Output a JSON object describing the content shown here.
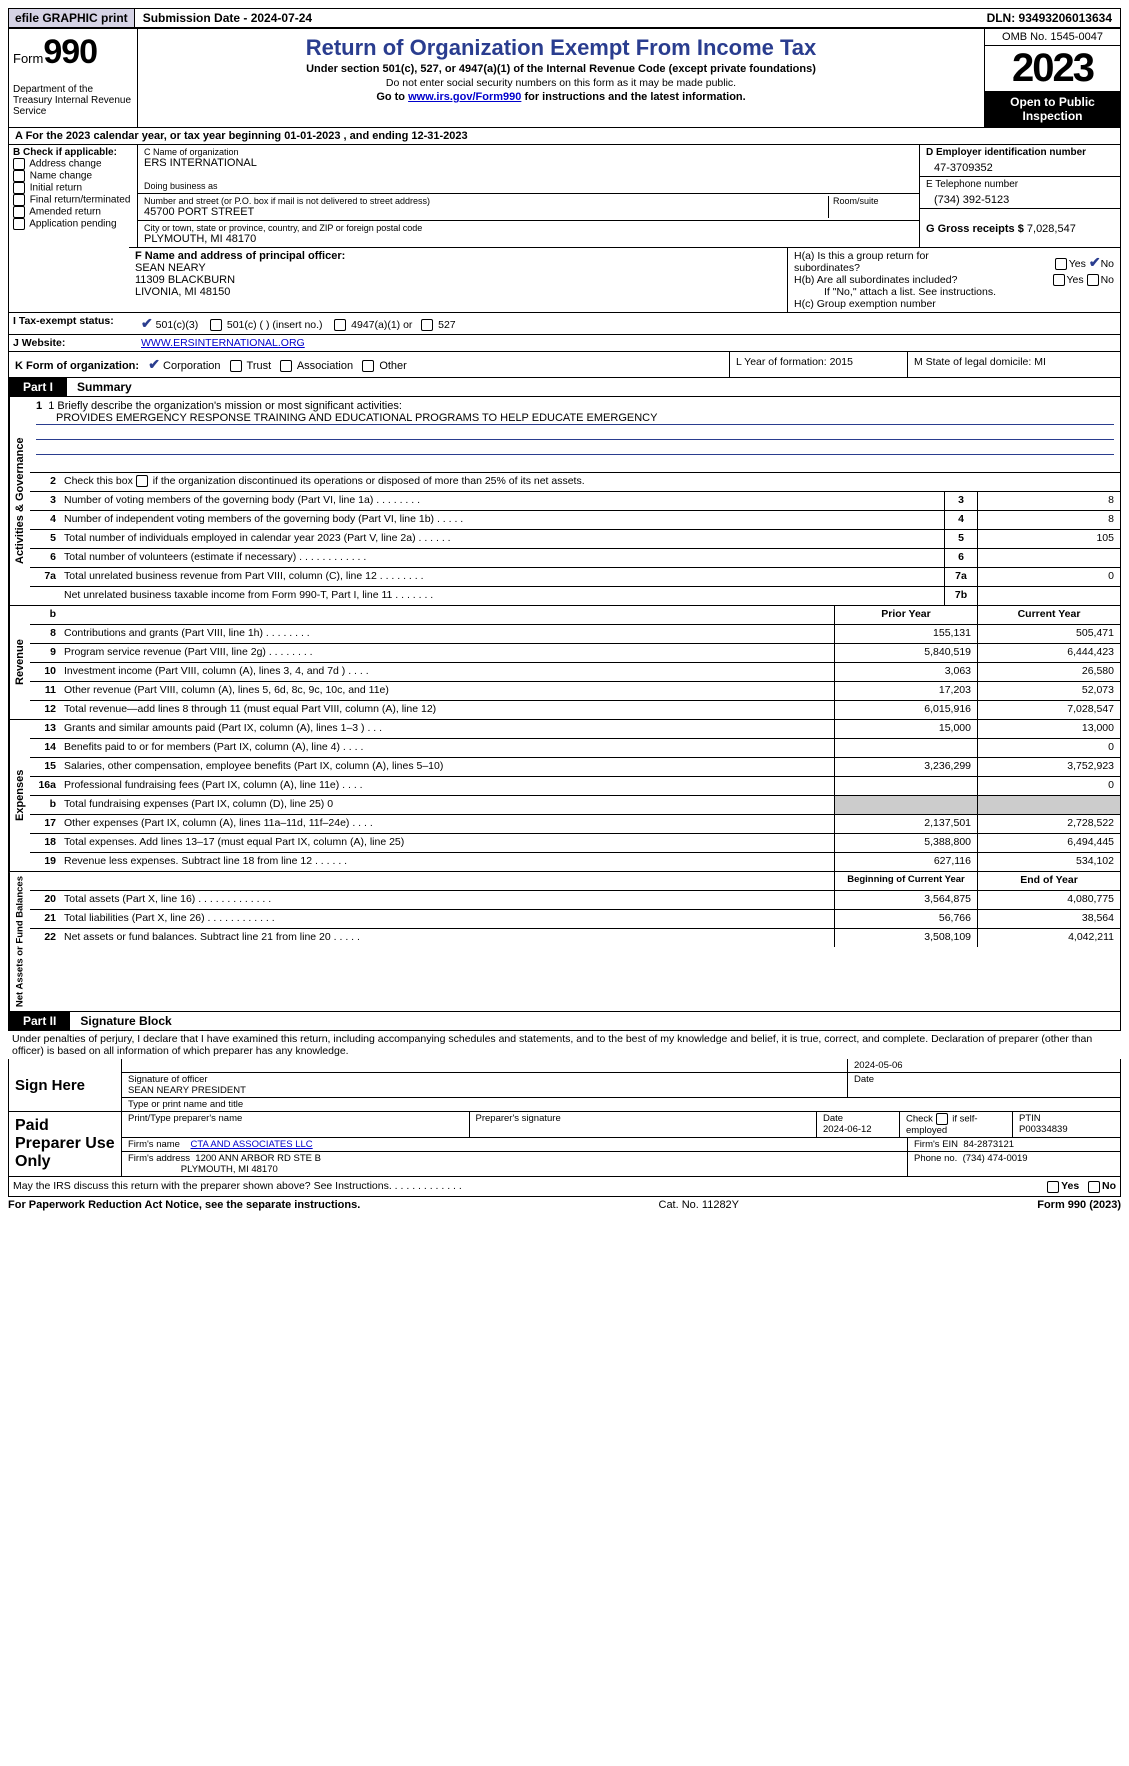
{
  "topbar": {
    "efile": "efile GRAPHIC print",
    "submission": "Submission Date - 2024-07-24",
    "dln": "DLN: 93493206013634"
  },
  "header": {
    "form_word": "Form",
    "form_num": "990",
    "dept": "Department of the Treasury Internal Revenue Service",
    "title": "Return of Organization Exempt From Income Tax",
    "sub1": "Under section 501(c), 527, or 4947(a)(1) of the Internal Revenue Code (except private foundations)",
    "sub2": "Do not enter social security numbers on this form as it may be made public.",
    "sub3_pre": "Go to ",
    "sub3_link": "www.irs.gov/Form990",
    "sub3_post": " for instructions and the latest information.",
    "omb": "OMB No. 1545-0047",
    "year": "2023",
    "inspection": "Open to Public Inspection"
  },
  "row_a": "A For the 2023 calendar year, or tax year beginning 01-01-2023   , and ending 12-31-2023",
  "col_b": {
    "title": "B Check if applicable:",
    "opts": [
      "Address change",
      "Name change",
      "Initial return",
      "Final return/terminated",
      "Amended return",
      "Application pending"
    ]
  },
  "col_c": {
    "name_lbl": "C Name of organization",
    "name": "ERS INTERNATIONAL",
    "dba_lbl": "Doing business as",
    "dba": "",
    "street_lbl": "Number and street (or P.O. box if mail is not delivered to street address)",
    "room_lbl": "Room/suite",
    "street": "45700 PORT STREET",
    "city_lbl": "City or town, state or province, country, and ZIP or foreign postal code",
    "city": "PLYMOUTH, MI  48170"
  },
  "col_d": {
    "ein_lbl": "D Employer identification number",
    "ein": "47-3709352",
    "tel_lbl": "E Telephone number",
    "tel": "(734) 392-5123",
    "gross_lbl": "G Gross receipts $",
    "gross": "7,028,547"
  },
  "row_f": {
    "lbl": "F  Name and address of principal officer:",
    "name": "SEAN NEARY",
    "addr1": "11309 BLACKBURN",
    "addr2": "LIVONIA, MI  48150",
    "ha": "H(a)  Is this a group return for subordinates?",
    "hb": "H(b)  Are all subordinates included?",
    "hb_note": "If \"No,\" attach a list. See instructions.",
    "hc": "H(c)  Group exemption number",
    "yes": "Yes",
    "no": "No"
  },
  "tax_status": {
    "lbl": "I  Tax-exempt status:",
    "o1": "501(c)(3)",
    "o2": "501(c) (  ) (insert no.)",
    "o3": "4947(a)(1) or",
    "o4": "527"
  },
  "website": {
    "lbl": "J  Website:",
    "val": "WWW.ERSINTERNATIONAL.ORG"
  },
  "row_k": {
    "lbl": "K Form of organization:",
    "o1": "Corporation",
    "o2": "Trust",
    "o3": "Association",
    "o4": "Other",
    "l": "L Year of formation: 2015",
    "m": "M State of legal domicile: MI"
  },
  "part1": {
    "tab": "Part I",
    "title": "Summary"
  },
  "mission": {
    "lbl": "1   Briefly describe the organization's mission or most significant activities:",
    "text": "PROVIDES EMERGENCY RESPONSE TRAINING AND EDUCATIONAL PROGRAMS TO HELP EDUCATE EMERGENCY"
  },
  "line2": "Check this box          if the organization discontinued its operations or disposed of more than 25% of its net assets.",
  "gov_rows": [
    {
      "n": "3",
      "t": "Number of voting members of the governing body (Part VI, line 1a)   .    .    .    .    .    .    .    .",
      "box": "3",
      "v": "8"
    },
    {
      "n": "4",
      "t": "Number of independent voting members of the governing body (Part VI, line 1b)   .    .    .    .    .",
      "box": "4",
      "v": "8"
    },
    {
      "n": "5",
      "t": "Total number of individuals employed in calendar year 2023 (Part V, line 2a)   .    .    .    .    .    .",
      "box": "5",
      "v": "105"
    },
    {
      "n": "6",
      "t": "Total number of volunteers (estimate if necessary)   .    .    .    .    .    .    .    .    .    .    .    .",
      "box": "6",
      "v": ""
    },
    {
      "n": "7a",
      "t": "Total unrelated business revenue from Part VIII, column (C), line 12   .    .    .    .    .    .    .    .",
      "box": "7a",
      "v": "0"
    },
    {
      "n": "",
      "t": "Net unrelated business taxable income from Form 990-T, Part I, line 11   .    .    .    .    .    .    .",
      "box": "7b",
      "v": ""
    }
  ],
  "rev_hdr": {
    "b": "b",
    "py": "Prior Year",
    "cy": "Current Year"
  },
  "rev_rows": [
    {
      "n": "8",
      "t": "Contributions and grants (Part VIII, line 1h)   .    .    .    .    .    .    .    .",
      "py": "155,131",
      "cy": "505,471"
    },
    {
      "n": "9",
      "t": "Program service revenue (Part VIII, line 2g)   .    .    .    .    .    .    .    .",
      "py": "5,840,519",
      "cy": "6,444,423"
    },
    {
      "n": "10",
      "t": "Investment income (Part VIII, column (A), lines 3, 4, and 7d )   .    .    .    .",
      "py": "3,063",
      "cy": "26,580"
    },
    {
      "n": "11",
      "t": "Other revenue (Part VIII, column (A), lines 5, 6d, 8c, 9c, 10c, and 11e)",
      "py": "17,203",
      "cy": "52,073"
    },
    {
      "n": "12",
      "t": "Total revenue—add lines 8 through 11 (must equal Part VIII, column (A), line 12)",
      "py": "6,015,916",
      "cy": "7,028,547"
    }
  ],
  "exp_rows": [
    {
      "n": "13",
      "t": "Grants and similar amounts paid (Part IX, column (A), lines 1–3 )   .    .    .",
      "py": "15,000",
      "cy": "13,000"
    },
    {
      "n": "14",
      "t": "Benefits paid to or for members (Part IX, column (A), line 4)   .    .    .    .",
      "py": "",
      "cy": "0"
    },
    {
      "n": "15",
      "t": "Salaries, other compensation, employee benefits (Part IX, column (A), lines 5–10)",
      "py": "3,236,299",
      "cy": "3,752,923"
    },
    {
      "n": "16a",
      "t": "Professional fundraising fees (Part IX, column (A), line 11e)   .    .    .    .",
      "py": "",
      "cy": "0"
    },
    {
      "n": "b",
      "t": "Total fundraising expenses (Part IX, column (D), line 25) 0",
      "py": "GREY",
      "cy": "GREY"
    },
    {
      "n": "17",
      "t": "Other expenses (Part IX, column (A), lines 11a–11d, 11f–24e)   .    .    .    .",
      "py": "2,137,501",
      "cy": "2,728,522"
    },
    {
      "n": "18",
      "t": "Total expenses. Add lines 13–17 (must equal Part IX, column (A), line 25)",
      "py": "5,388,800",
      "cy": "6,494,445"
    },
    {
      "n": "19",
      "t": "Revenue less expenses. Subtract line 18 from line 12   .    .    .    .    .    .",
      "py": "627,116",
      "cy": "534,102"
    }
  ],
  "na_hdr": {
    "py": "Beginning of Current Year",
    "cy": "End of Year"
  },
  "na_rows": [
    {
      "n": "20",
      "t": "Total assets (Part X, line 16)   .    .    .    .    .    .    .    .    .    .    .    .    .",
      "py": "3,564,875",
      "cy": "4,080,775"
    },
    {
      "n": "21",
      "t": "Total liabilities (Part X, line 26)   .    .    .    .    .    .    .    .    .    .    .    .",
      "py": "56,766",
      "cy": "38,564"
    },
    {
      "n": "22",
      "t": "Net assets or fund balances. Subtract line 21 from line 20   .    .    .    .    .",
      "py": "3,508,109",
      "cy": "4,042,211"
    }
  ],
  "side_labels": {
    "gov": "Activities & Governance",
    "rev": "Revenue",
    "exp": "Expenses",
    "na": "Net Assets or Fund Balances"
  },
  "part2": {
    "tab": "Part II",
    "title": "Signature Block"
  },
  "perjury": "Under penalties of perjury, I declare that I have examined this return, including accompanying schedules and statements, and to the best of my knowledge and belief, it is true, correct, and complete. Declaration of preparer (other than officer) is based on all information of which preparer has any knowledge.",
  "sign": {
    "here": "Sign Here",
    "date": "2024-05-06",
    "sig_lbl": "Signature of officer",
    "officer": "SEAN NEARY PRESIDENT",
    "type_lbl": "Type or print name and title",
    "date_lbl": "Date"
  },
  "paid": {
    "lbl": "Paid Preparer Use Only",
    "r1": {
      "a": "Print/Type preparer's name",
      "b": "Preparer's signature",
      "c": "Date",
      "cv": "2024-06-12",
      "d": "Check          if self-employed",
      "e": "PTIN",
      "ev": "P00334839"
    },
    "r2": {
      "a": "Firm's name",
      "av": "CTA AND ASSOCIATES LLC",
      "b": "Firm's EIN",
      "bv": "84-2873121"
    },
    "r3": {
      "a": "Firm's address",
      "av1": "1200 ANN ARBOR RD STE B",
      "av2": "PLYMOUTH, MI  48170",
      "b": "Phone no.",
      "bv": "(734) 474-0019"
    }
  },
  "discuss": {
    "q": "May the IRS discuss this return with the preparer shown above? See Instructions.   .    .    .    .    .    .    .    .    .    .    .    .",
    "yes": "Yes",
    "no": "No"
  },
  "footer": {
    "l": "For Paperwork Reduction Act Notice, see the separate instructions.",
    "c": "Cat. No. 11282Y",
    "r": "Form 990 (2023)"
  }
}
